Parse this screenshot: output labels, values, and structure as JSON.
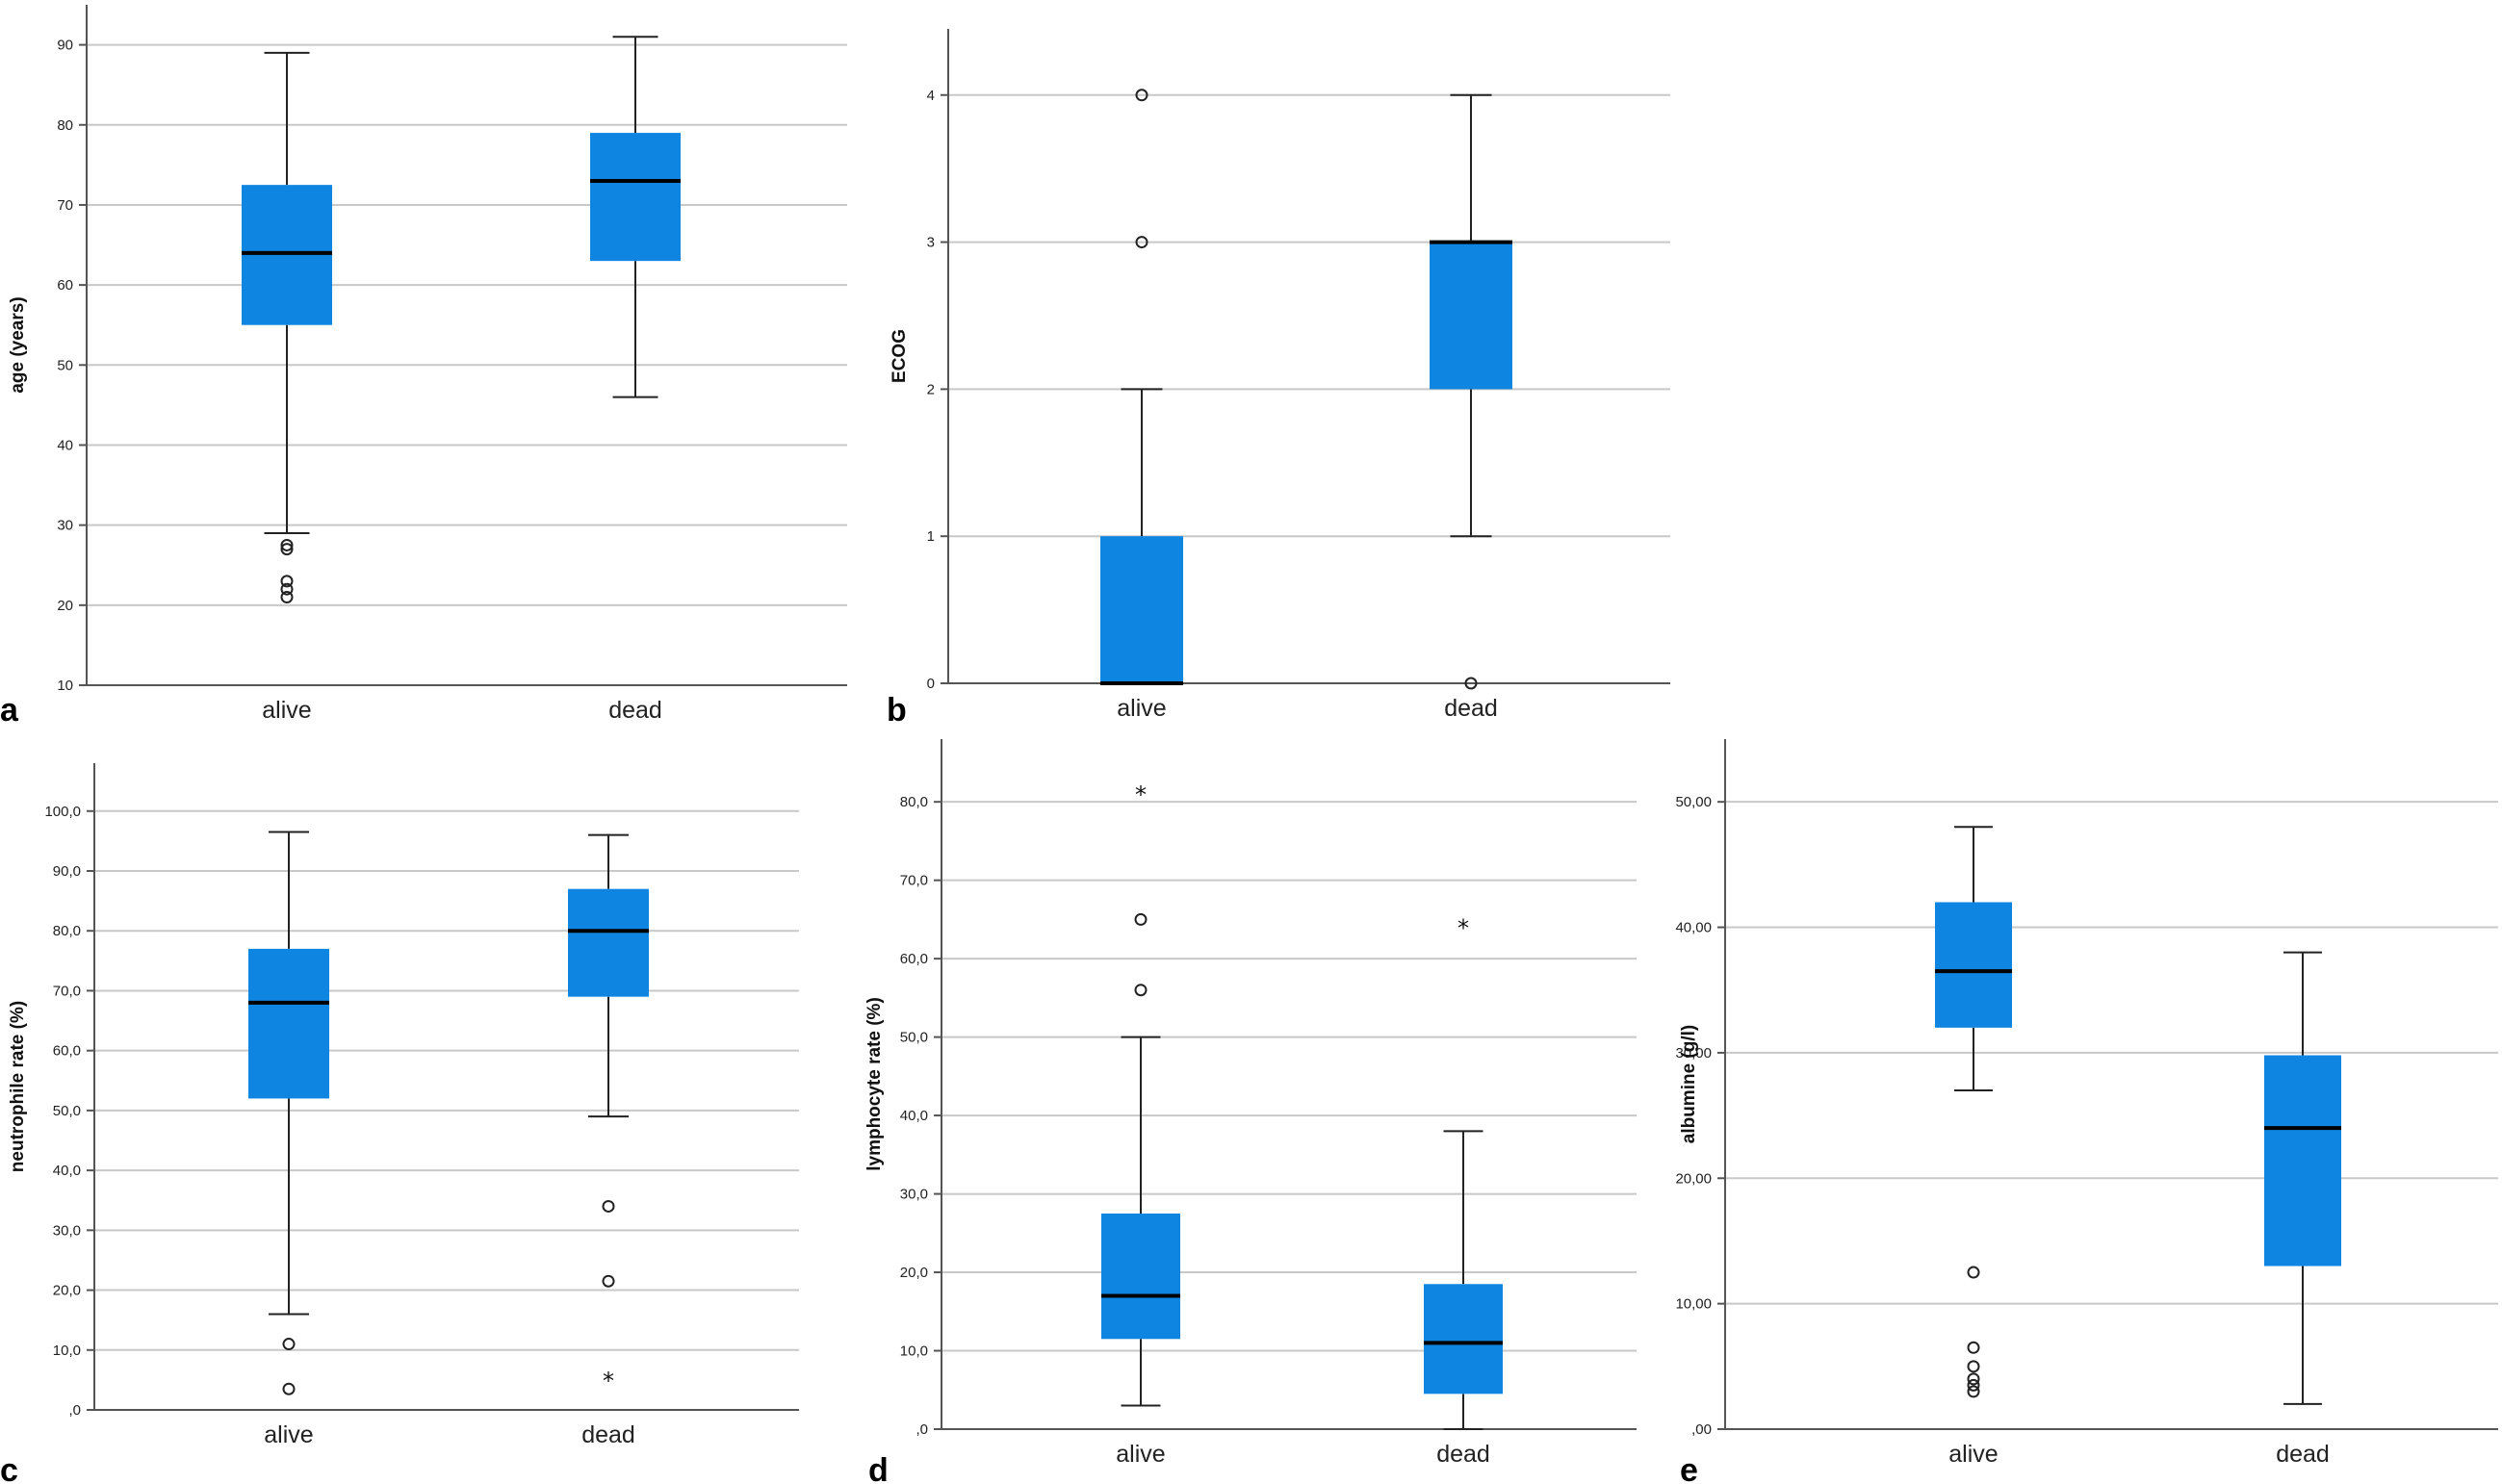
{
  "chart_data": [
    {
      "panel": "a",
      "type": "boxplot",
      "ylabel": "age (years)",
      "ylim": [
        10,
        95
      ],
      "yticks": [
        10,
        20,
        30,
        40,
        50,
        60,
        70,
        80,
        90
      ],
      "tick_labels": [
        "10",
        "20",
        "30",
        "40",
        "50",
        "60",
        "70",
        "80",
        "90"
      ],
      "categories": [
        "alive",
        "dead"
      ],
      "boxes": [
        {
          "min": 29,
          "q1": 55,
          "median": 64,
          "q3": 72.5,
          "max": 89,
          "outliers": [
            27.5,
            27,
            23,
            22,
            21
          ],
          "extremes": []
        },
        {
          "min": 46,
          "q1": 63,
          "median": 73,
          "q3": 79,
          "max": 91,
          "outliers": [],
          "extremes": []
        }
      ]
    },
    {
      "panel": "b",
      "type": "boxplot",
      "ylabel": "ECOG",
      "ylim": [
        0,
        4.45
      ],
      "yticks": [
        0,
        1,
        2,
        3,
        4
      ],
      "tick_labels": [
        "0",
        "1",
        "2",
        "3",
        "4"
      ],
      "categories": [
        "alive",
        "dead"
      ],
      "boxes": [
        {
          "min": 0,
          "q1": 0,
          "median": 0,
          "q3": 1,
          "max": 2,
          "outliers": [
            3,
            4
          ],
          "extremes": []
        },
        {
          "min": 1,
          "q1": 2,
          "median": 3,
          "q3": 3,
          "max": 4,
          "outliers": [
            0
          ],
          "extremes": []
        }
      ]
    },
    {
      "panel": "c",
      "type": "boxplot",
      "ylabel": "neutrophile rate (%)",
      "ylim": [
        0,
        108
      ],
      "yticks": [
        0,
        10,
        20,
        30,
        40,
        50,
        60,
        70,
        80,
        90,
        100
      ],
      "tick_labels": [
        ",0",
        "10,0",
        "20,0",
        "30,0",
        "40,0",
        "50,0",
        "60,0",
        "70,0",
        "80,0",
        "90,0",
        "100,0"
      ],
      "categories": [
        "alive",
        "dead"
      ],
      "boxes": [
        {
          "min": 16,
          "q1": 52,
          "median": 68,
          "q3": 77,
          "max": 96.5,
          "outliers": [
            11,
            3.5
          ],
          "extremes": []
        },
        {
          "min": 49,
          "q1": 69,
          "median": 80,
          "q3": 87,
          "max": 96,
          "outliers": [
            34,
            21.5
          ],
          "extremes": [
            5
          ]
        }
      ]
    },
    {
      "panel": "d",
      "type": "boxplot",
      "ylabel": "lymphocyte rate (%)",
      "ylim": [
        0,
        88
      ],
      "yticks": [
        0,
        10,
        20,
        30,
        40,
        50,
        60,
        70,
        80
      ],
      "tick_labels": [
        ",0",
        "10,0",
        "20,0",
        "30,0",
        "40,0",
        "50,0",
        "60,0",
        "70,0",
        "80,0"
      ],
      "categories": [
        "alive",
        "dead"
      ],
      "boxes": [
        {
          "min": 3,
          "q1": 11.5,
          "median": 17,
          "q3": 27.5,
          "max": 50,
          "outliers": [
            65,
            56
          ],
          "extremes": [
            81
          ]
        },
        {
          "min": 0,
          "q1": 4.5,
          "median": 11,
          "q3": 18.5,
          "max": 38,
          "outliers": [],
          "extremes": [
            64
          ]
        }
      ]
    },
    {
      "panel": "e",
      "type": "boxplot",
      "ylabel": "albumine (g/l)",
      "ylim": [
        0,
        55
      ],
      "yticks": [
        0,
        10,
        20,
        30,
        40,
        50
      ],
      "tick_labels": [
        ",00",
        "10,00",
        "20,00",
        "30,00",
        "40,00",
        "50,00"
      ],
      "categories": [
        "alive",
        "dead"
      ],
      "boxes": [
        {
          "min": 27,
          "q1": 32,
          "median": 36.5,
          "q3": 42,
          "max": 48,
          "outliers": [
            12.5,
            6.5,
            5,
            4,
            3.5,
            3
          ],
          "extremes": []
        },
        {
          "min": 2,
          "q1": 13,
          "median": 24,
          "q3": 29.8,
          "max": 38,
          "outliers": [],
          "extremes": []
        }
      ]
    }
  ],
  "colors": {
    "box_fill": "#0f85e2",
    "grid": "#c8c8c8",
    "axis": "#555555",
    "line": "#222222"
  }
}
